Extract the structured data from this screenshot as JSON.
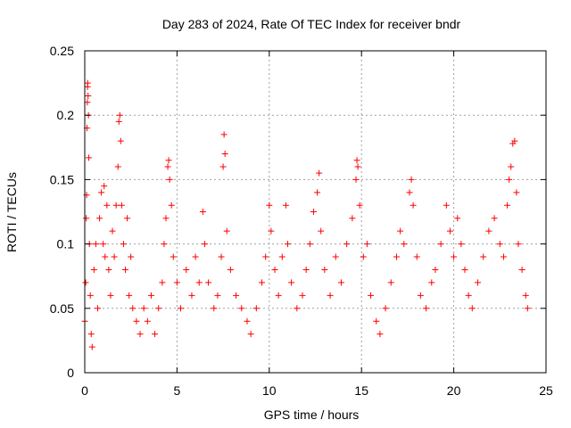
{
  "chart_data": {
    "type": "scatter",
    "title": "Day 283 of 2024, Rate Of TEC Index for receiver bndr",
    "xlabel": "GPS time / hours",
    "ylabel": "ROTI / TECUs",
    "xlim": [
      0,
      25
    ],
    "ylim": [
      0,
      0.25
    ],
    "x_ticks": [
      "0",
      "5",
      "10",
      "15",
      "20",
      "25"
    ],
    "y_ticks": [
      "0",
      "0.05",
      "0.1",
      "0.15",
      "0.2",
      "0.25"
    ],
    "grid": true,
    "marker": "plus",
    "point_color": "#ff0000",
    "series": [
      {
        "values_note_free": true,
        "points": [
          [
            0.0,
            0.04
          ],
          [
            0.05,
            0.07
          ],
          [
            0.08,
            0.12
          ],
          [
            0.1,
            0.138
          ],
          [
            0.12,
            0.19
          ],
          [
            0.14,
            0.21
          ],
          [
            0.15,
            0.222
          ],
          [
            0.16,
            0.225
          ],
          [
            0.18,
            0.215
          ],
          [
            0.2,
            0.2
          ],
          [
            0.22,
            0.167
          ],
          [
            0.25,
            0.1
          ],
          [
            0.3,
            0.06
          ],
          [
            0.35,
            0.03
          ],
          [
            0.4,
            0.02
          ],
          [
            0.5,
            0.08
          ],
          [
            0.6,
            0.1
          ],
          [
            0.7,
            0.05
          ],
          [
            0.8,
            0.12
          ],
          [
            0.9,
            0.14
          ],
          [
            1.0,
            0.1
          ],
          [
            1.05,
            0.145
          ],
          [
            1.1,
            0.09
          ],
          [
            1.2,
            0.13
          ],
          [
            1.3,
            0.08
          ],
          [
            1.4,
            0.06
          ],
          [
            1.5,
            0.11
          ],
          [
            1.6,
            0.09
          ],
          [
            1.7,
            0.13
          ],
          [
            1.8,
            0.16
          ],
          [
            1.85,
            0.195
          ],
          [
            1.9,
            0.2
          ],
          [
            1.95,
            0.18
          ],
          [
            2.0,
            0.13
          ],
          [
            2.1,
            0.1
          ],
          [
            2.2,
            0.08
          ],
          [
            2.3,
            0.12
          ],
          [
            2.4,
            0.06
          ],
          [
            2.5,
            0.09
          ],
          [
            2.6,
            0.05
          ],
          [
            2.8,
            0.04
          ],
          [
            3.0,
            0.03
          ],
          [
            3.2,
            0.05
          ],
          [
            3.4,
            0.04
          ],
          [
            3.6,
            0.06
          ],
          [
            3.8,
            0.03
          ],
          [
            4.0,
            0.05
          ],
          [
            4.2,
            0.07
          ],
          [
            4.3,
            0.1
          ],
          [
            4.4,
            0.12
          ],
          [
            4.5,
            0.16
          ],
          [
            4.55,
            0.165
          ],
          [
            4.6,
            0.15
          ],
          [
            4.7,
            0.13
          ],
          [
            4.8,
            0.09
          ],
          [
            5.0,
            0.07
          ],
          [
            5.2,
            0.05
          ],
          [
            5.5,
            0.08
          ],
          [
            5.8,
            0.06
          ],
          [
            6.0,
            0.09
          ],
          [
            6.2,
            0.07
          ],
          [
            6.4,
            0.125
          ],
          [
            6.5,
            0.1
          ],
          [
            6.7,
            0.07
          ],
          [
            7.0,
            0.05
          ],
          [
            7.2,
            0.06
          ],
          [
            7.4,
            0.09
          ],
          [
            7.5,
            0.16
          ],
          [
            7.55,
            0.185
          ],
          [
            7.6,
            0.17
          ],
          [
            7.7,
            0.11
          ],
          [
            7.9,
            0.08
          ],
          [
            8.2,
            0.06
          ],
          [
            8.5,
            0.05
          ],
          [
            8.8,
            0.04
          ],
          [
            9.0,
            0.03
          ],
          [
            9.3,
            0.05
          ],
          [
            9.6,
            0.07
          ],
          [
            9.8,
            0.09
          ],
          [
            10.0,
            0.13
          ],
          [
            10.1,
            0.11
          ],
          [
            10.3,
            0.08
          ],
          [
            10.5,
            0.06
          ],
          [
            10.7,
            0.09
          ],
          [
            10.9,
            0.13
          ],
          [
            11.0,
            0.1
          ],
          [
            11.2,
            0.07
          ],
          [
            11.5,
            0.05
          ],
          [
            11.8,
            0.06
          ],
          [
            12.0,
            0.08
          ],
          [
            12.2,
            0.1
          ],
          [
            12.4,
            0.125
          ],
          [
            12.6,
            0.14
          ],
          [
            12.7,
            0.155
          ],
          [
            12.8,
            0.11
          ],
          [
            13.0,
            0.08
          ],
          [
            13.3,
            0.06
          ],
          [
            13.6,
            0.09
          ],
          [
            13.9,
            0.07
          ],
          [
            14.2,
            0.1
          ],
          [
            14.5,
            0.12
          ],
          [
            14.7,
            0.15
          ],
          [
            14.75,
            0.165
          ],
          [
            14.8,
            0.16
          ],
          [
            14.9,
            0.13
          ],
          [
            15.1,
            0.09
          ],
          [
            15.3,
            0.1
          ],
          [
            15.5,
            0.06
          ],
          [
            15.8,
            0.04
          ],
          [
            16.0,
            0.03
          ],
          [
            16.3,
            0.05
          ],
          [
            16.6,
            0.07
          ],
          [
            16.9,
            0.09
          ],
          [
            17.1,
            0.11
          ],
          [
            17.3,
            0.1
          ],
          [
            17.6,
            0.14
          ],
          [
            17.7,
            0.15
          ],
          [
            17.8,
            0.13
          ],
          [
            18.0,
            0.09
          ],
          [
            18.2,
            0.06
          ],
          [
            18.5,
            0.05
          ],
          [
            18.8,
            0.07
          ],
          [
            19.0,
            0.08
          ],
          [
            19.3,
            0.1
          ],
          [
            19.6,
            0.13
          ],
          [
            19.8,
            0.11
          ],
          [
            20.0,
            0.09
          ],
          [
            20.2,
            0.12
          ],
          [
            20.4,
            0.1
          ],
          [
            20.6,
            0.08
          ],
          [
            20.8,
            0.06
          ],
          [
            21.0,
            0.05
          ],
          [
            21.3,
            0.07
          ],
          [
            21.6,
            0.09
          ],
          [
            21.9,
            0.11
          ],
          [
            22.2,
            0.12
          ],
          [
            22.5,
            0.1
          ],
          [
            22.7,
            0.09
          ],
          [
            22.9,
            0.13
          ],
          [
            23.0,
            0.15
          ],
          [
            23.1,
            0.16
          ],
          [
            23.2,
            0.178
          ],
          [
            23.3,
            0.18
          ],
          [
            23.4,
            0.14
          ],
          [
            23.5,
            0.1
          ],
          [
            23.7,
            0.08
          ],
          [
            23.9,
            0.06
          ],
          [
            24.0,
            0.05
          ]
        ]
      }
    ]
  }
}
